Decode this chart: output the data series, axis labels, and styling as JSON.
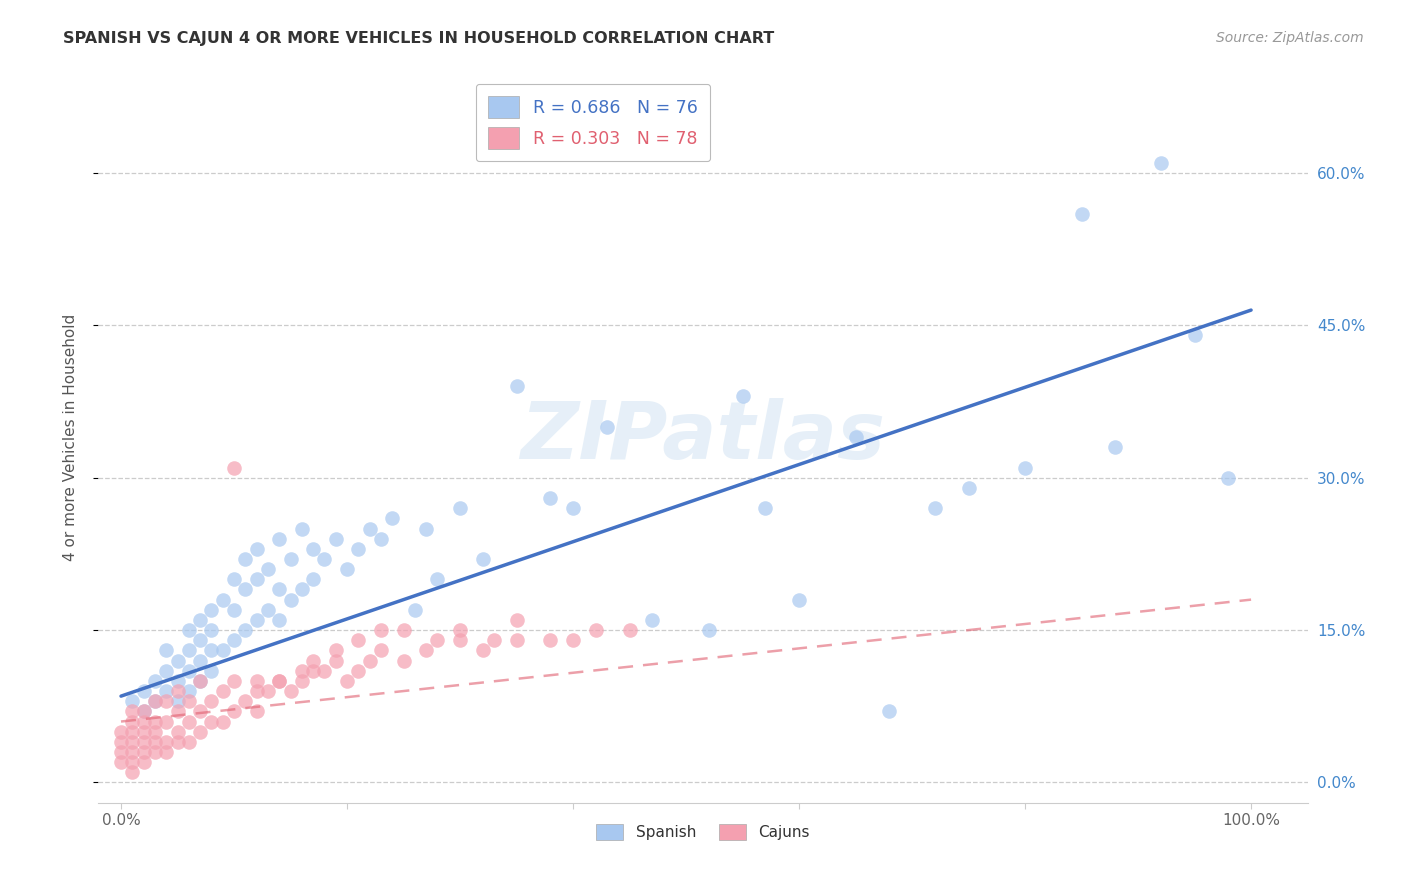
{
  "title": "SPANISH VS CAJUN 4 OR MORE VEHICLES IN HOUSEHOLD CORRELATION CHART",
  "source": "Source: ZipAtlas.com",
  "ylabel": "4 or more Vehicles in Household",
  "watermark": "ZIPatlas",
  "legend_blue_R": "0.686",
  "legend_blue_N": "76",
  "legend_pink_R": "0.303",
  "legend_pink_N": "78",
  "blue_color": "#A8C8F0",
  "pink_color": "#F4A0B0",
  "blue_line_color": "#4472C4",
  "pink_line_color": "#E06070",
  "blue_slope": 0.38,
  "blue_intercept": 0.085,
  "pink_slope": 0.12,
  "pink_intercept": 0.06,
  "background_color": "#ffffff",
  "grid_color": "#cccccc",
  "title_color": "#333333",
  "right_tick_color": "#4488cc",
  "yticks": [
    0.0,
    0.15,
    0.3,
    0.45,
    0.6
  ],
  "ytick_labels": [
    "0.0%",
    "15.0%",
    "30.0%",
    "45.0%",
    "60.0%"
  ],
  "xticks": [
    0.0,
    0.2,
    0.4,
    0.6,
    0.8,
    1.0
  ],
  "xtick_labels": [
    "0.0%",
    "",
    "",
    "",
    "",
    "100.0%"
  ],
  "xlim": [
    -0.02,
    1.05
  ],
  "ylim": [
    -0.02,
    0.7
  ],
  "spanish_x": [
    0.01,
    0.02,
    0.02,
    0.03,
    0.03,
    0.04,
    0.04,
    0.04,
    0.05,
    0.05,
    0.05,
    0.06,
    0.06,
    0.06,
    0.06,
    0.07,
    0.07,
    0.07,
    0.07,
    0.08,
    0.08,
    0.08,
    0.08,
    0.09,
    0.09,
    0.1,
    0.1,
    0.1,
    0.11,
    0.11,
    0.11,
    0.12,
    0.12,
    0.12,
    0.13,
    0.13,
    0.14,
    0.14,
    0.14,
    0.15,
    0.15,
    0.16,
    0.16,
    0.17,
    0.17,
    0.18,
    0.19,
    0.2,
    0.21,
    0.22,
    0.23,
    0.24,
    0.26,
    0.27,
    0.28,
    0.3,
    0.32,
    0.35,
    0.38,
    0.4,
    0.43,
    0.47,
    0.52,
    0.55,
    0.57,
    0.6,
    0.65,
    0.68,
    0.72,
    0.75,
    0.8,
    0.85,
    0.88,
    0.92,
    0.95,
    0.98
  ],
  "spanish_y": [
    0.08,
    0.07,
    0.09,
    0.08,
    0.1,
    0.09,
    0.11,
    0.13,
    0.08,
    0.1,
    0.12,
    0.09,
    0.11,
    0.13,
    0.15,
    0.1,
    0.12,
    0.14,
    0.16,
    0.11,
    0.13,
    0.15,
    0.17,
    0.13,
    0.18,
    0.14,
    0.17,
    0.2,
    0.15,
    0.19,
    0.22,
    0.16,
    0.2,
    0.23,
    0.17,
    0.21,
    0.16,
    0.19,
    0.24,
    0.18,
    0.22,
    0.19,
    0.25,
    0.2,
    0.23,
    0.22,
    0.24,
    0.21,
    0.23,
    0.25,
    0.24,
    0.26,
    0.17,
    0.25,
    0.2,
    0.27,
    0.22,
    0.39,
    0.28,
    0.27,
    0.35,
    0.16,
    0.15,
    0.38,
    0.27,
    0.18,
    0.34,
    0.07,
    0.27,
    0.29,
    0.31,
    0.56,
    0.33,
    0.61,
    0.44,
    0.3
  ],
  "cajun_x": [
    0.0,
    0.0,
    0.0,
    0.0,
    0.01,
    0.01,
    0.01,
    0.01,
    0.01,
    0.01,
    0.01,
    0.02,
    0.02,
    0.02,
    0.02,
    0.02,
    0.02,
    0.03,
    0.03,
    0.03,
    0.03,
    0.03,
    0.04,
    0.04,
    0.04,
    0.04,
    0.05,
    0.05,
    0.05,
    0.05,
    0.06,
    0.06,
    0.06,
    0.07,
    0.07,
    0.07,
    0.08,
    0.08,
    0.09,
    0.09,
    0.1,
    0.1,
    0.11,
    0.12,
    0.12,
    0.13,
    0.14,
    0.15,
    0.16,
    0.17,
    0.18,
    0.19,
    0.2,
    0.21,
    0.22,
    0.23,
    0.25,
    0.27,
    0.3,
    0.32,
    0.35,
    0.1,
    0.12,
    0.14,
    0.16,
    0.17,
    0.19,
    0.21,
    0.23,
    0.25,
    0.28,
    0.3,
    0.33,
    0.35,
    0.38,
    0.4,
    0.42,
    0.45
  ],
  "cajun_y": [
    0.02,
    0.03,
    0.04,
    0.05,
    0.01,
    0.02,
    0.03,
    0.04,
    0.05,
    0.06,
    0.07,
    0.02,
    0.03,
    0.04,
    0.05,
    0.06,
    0.07,
    0.03,
    0.04,
    0.05,
    0.06,
    0.08,
    0.03,
    0.04,
    0.06,
    0.08,
    0.04,
    0.05,
    0.07,
    0.09,
    0.04,
    0.06,
    0.08,
    0.05,
    0.07,
    0.1,
    0.06,
    0.08,
    0.06,
    0.09,
    0.07,
    0.1,
    0.08,
    0.07,
    0.1,
    0.09,
    0.1,
    0.09,
    0.1,
    0.11,
    0.11,
    0.12,
    0.1,
    0.11,
    0.12,
    0.13,
    0.12,
    0.13,
    0.14,
    0.13,
    0.14,
    0.31,
    0.09,
    0.1,
    0.11,
    0.12,
    0.13,
    0.14,
    0.15,
    0.15,
    0.14,
    0.15,
    0.14,
    0.16,
    0.14,
    0.14,
    0.15,
    0.15
  ]
}
